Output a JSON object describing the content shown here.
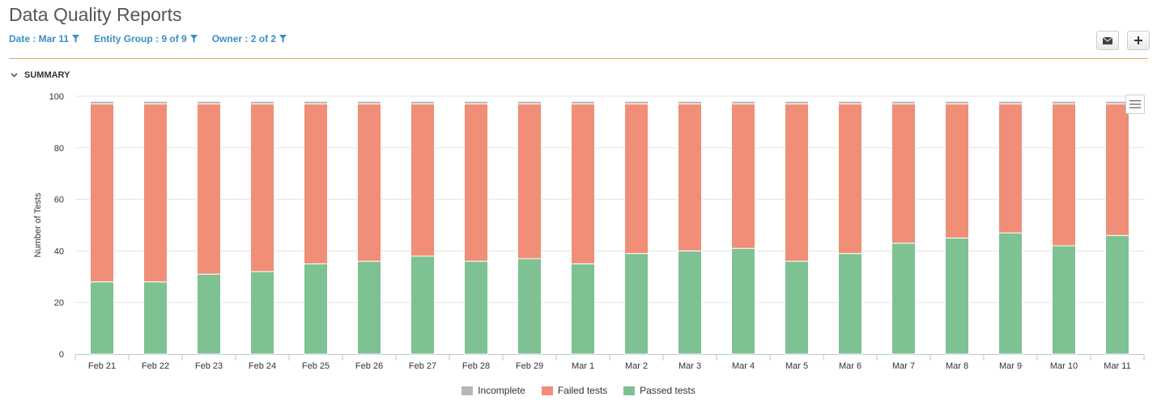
{
  "page": {
    "title": "Data Quality Reports"
  },
  "filters": [
    {
      "label": "Date : Mar 11"
    },
    {
      "label": "Entity Group : 9 of 9"
    },
    {
      "label": "Owner : 2 of 2"
    }
  ],
  "toolbar": {
    "email_icon": "envelope-icon",
    "add_icon": "plus-icon"
  },
  "summary": {
    "label": "SUMMARY"
  },
  "colors": {
    "accent": "#3a8ec7",
    "divider": "#e8a66a",
    "incomplete": "#b7b7b7",
    "failed": "#f08e78",
    "passed": "#7ec192"
  },
  "chart_data": {
    "type": "bar",
    "stacked": true,
    "categories": [
      "Feb 21",
      "Feb 22",
      "Feb 23",
      "Feb 24",
      "Feb 25",
      "Feb 26",
      "Feb 27",
      "Feb 28",
      "Feb 29",
      "Mar 1",
      "Mar 2",
      "Mar 3",
      "Mar 4",
      "Mar 5",
      "Mar 6",
      "Mar 7",
      "Mar 8",
      "Mar 9",
      "Mar 10",
      "Mar 11"
    ],
    "series": [
      {
        "name": "Passed tests",
        "color": "#7ec192",
        "values": [
          28,
          28,
          31,
          32,
          35,
          36,
          38,
          36,
          37,
          35,
          39,
          40,
          41,
          36,
          39,
          43,
          45,
          47,
          42,
          46
        ]
      },
      {
        "name": "Failed tests",
        "color": "#f08e78",
        "values": [
          69,
          69,
          66,
          65,
          62,
          61,
          59,
          61,
          60,
          62,
          58,
          57,
          56,
          61,
          58,
          54,
          52,
          50,
          55,
          51
        ]
      },
      {
        "name": "Incomplete",
        "color": "#b7b7b7",
        "values": [
          1,
          1,
          1,
          1,
          1,
          1,
          1,
          1,
          1,
          1,
          1,
          1,
          1,
          1,
          1,
          1,
          1,
          1,
          1,
          1
        ]
      }
    ],
    "ylabel": "Number of Tests",
    "xlabel": "",
    "ylim": [
      0,
      100
    ],
    "yticks": [
      "0",
      "20",
      "40",
      "60",
      "80",
      "100"
    ],
    "legend_position": "bottom-center",
    "legend_order": [
      "Incomplete",
      "Failed tests",
      "Passed tests"
    ],
    "grid": true
  }
}
